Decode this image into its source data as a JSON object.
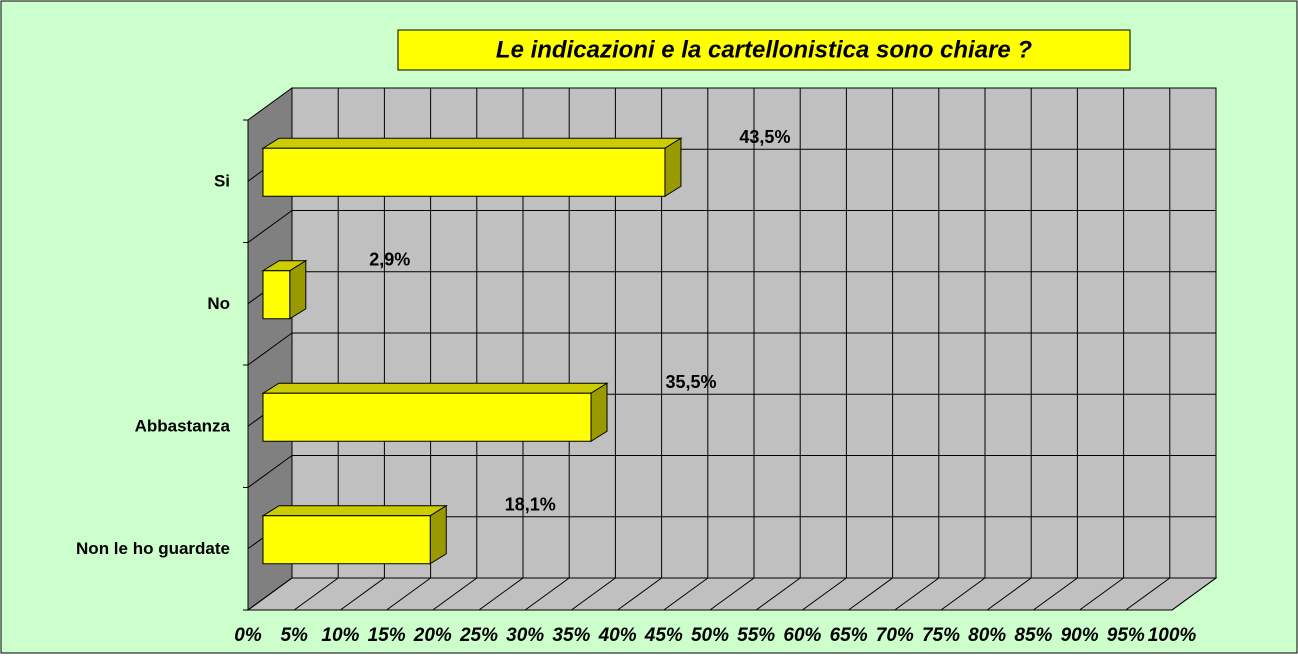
{
  "chart_data": {
    "type": "bar3d",
    "title": "Le indicazioni e la cartellonistica sono chiare ?",
    "categories": [
      "Si",
      "No",
      "Abbastanza",
      "Non le ho guardate"
    ],
    "values": [
      43.5,
      2.9,
      35.5,
      18.1
    ],
    "value_labels": [
      "43,5%",
      "2,9%",
      "35,5%",
      "18,1%"
    ],
    "color": "#ffff00",
    "xlim": [
      0,
      100
    ],
    "xticks": [
      {
        "value": 0,
        "label": "0%"
      },
      {
        "value": 5,
        "label": "5%"
      },
      {
        "value": 10,
        "label": "10%"
      },
      {
        "value": 15,
        "label": "15%"
      },
      {
        "value": 20,
        "label": "20%"
      },
      {
        "value": 25,
        "label": "25%"
      },
      {
        "value": 30,
        "label": "30%"
      },
      {
        "value": 35,
        "label": "35%"
      },
      {
        "value": 40,
        "label": "40%"
      },
      {
        "value": 45,
        "label": "45%"
      },
      {
        "value": 50,
        "label": "50%"
      },
      {
        "value": 55,
        "label": "55%"
      },
      {
        "value": 60,
        "label": "60%"
      },
      {
        "value": 65,
        "label": "65%"
      },
      {
        "value": 70,
        "label": "70%"
      },
      {
        "value": 75,
        "label": "75%"
      },
      {
        "value": 80,
        "label": "80%"
      },
      {
        "value": 85,
        "label": "85%"
      },
      {
        "value": 90,
        "label": "90%"
      },
      {
        "value": 95,
        "label": "95%"
      },
      {
        "value": 100,
        "label": "100%"
      }
    ],
    "grid": true
  }
}
